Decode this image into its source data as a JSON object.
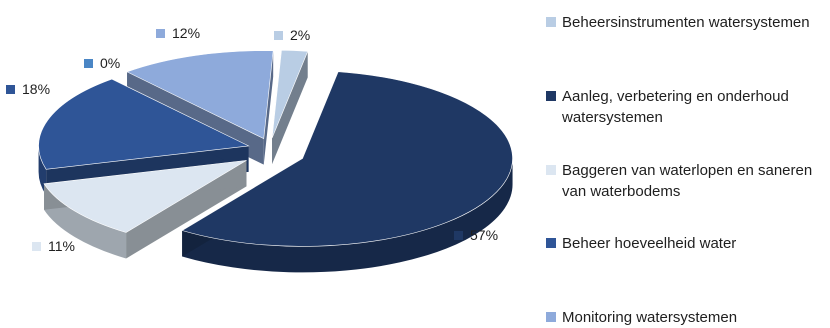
{
  "chart_data": {
    "type": "pie",
    "title": "",
    "legend_position": "right",
    "slices": [
      {
        "label": "Beheersinstrumenten watersystemen",
        "value": 2,
        "value_label": "2%",
        "color": "#b9cde4"
      },
      {
        "label": "Aanleg, verbetering en onderhoud watersystemen",
        "value": 57,
        "value_label": "57%",
        "color": "#1f3864"
      },
      {
        "label": "Baggeren van waterlopen en saneren van waterbodems",
        "value": 11,
        "value_label": "11%",
        "color": "#dce6f1"
      },
      {
        "label": "Beheer hoeveelheid water",
        "value": 18,
        "value_label": "18%",
        "color": "#2f5597"
      },
      {
        "label": "Monitoring watersystemen",
        "value": 12,
        "value_label": "12%",
        "color": "#8eaadb"
      },
      {
        "label": "",
        "value": 0,
        "value_label": "0%",
        "color": "#4a86c5"
      }
    ]
  }
}
